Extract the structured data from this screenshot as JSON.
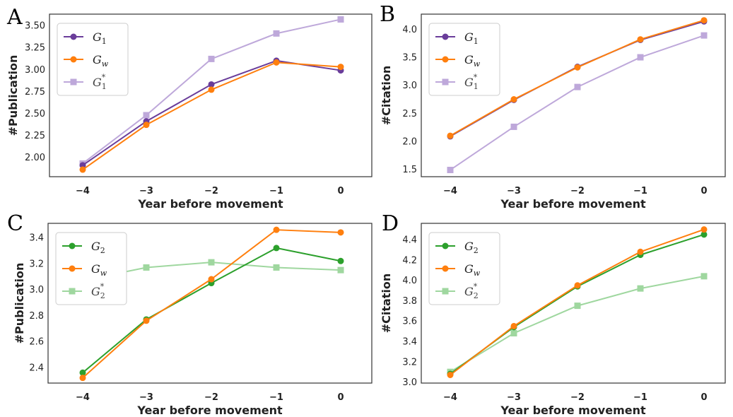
{
  "colors": {
    "purple": "#6a3d9a",
    "orange": "#ff7f0e",
    "light_purple": "#b39ad4",
    "green": "#2ca02c",
    "light_green": "#8fd18f",
    "axes": "#333333"
  },
  "chart_data": [
    {
      "panel": "A",
      "type": "line",
      "xlabel": "Year before movement",
      "ylabel": "#Publication",
      "x": [
        -4,
        -3,
        -2,
        -1,
        0
      ],
      "x_tick_labels": [
        "−4",
        "−3",
        "−2",
        "−1",
        "0"
      ],
      "yticks": [
        2.0,
        2.25,
        2.5,
        2.75,
        3.0,
        3.25,
        3.5
      ],
      "y_tick_labels": [
        "2.00",
        "2.25",
        "2.50",
        "2.75",
        "3.00",
        "3.25",
        "3.50"
      ],
      "ylim": [
        1.78,
        3.63
      ],
      "grid": false,
      "legend": "top-left",
      "series": [
        {
          "name": "G1",
          "legend_base": "G",
          "legend_sub": "1",
          "legend_sup": "",
          "color": "purple",
          "marker": "circle",
          "values": [
            1.91,
            2.41,
            2.83,
            3.1,
            2.99
          ]
        },
        {
          "name": "Gw",
          "legend_base": "G",
          "legend_sub": "w",
          "legend_sup": "",
          "color": "orange",
          "marker": "circle",
          "values": [
            1.86,
            2.37,
            2.77,
            3.08,
            3.03
          ]
        },
        {
          "name": "G1*",
          "legend_base": "G",
          "legend_sub": "1",
          "legend_sup": "*",
          "color": "light_purple",
          "marker": "square",
          "values": [
            1.93,
            2.48,
            3.12,
            3.41,
            3.57
          ]
        }
      ]
    },
    {
      "panel": "B",
      "type": "line",
      "xlabel": "Year before movement",
      "ylabel": "#Citation",
      "x": [
        -4,
        -3,
        -2,
        -1,
        0
      ],
      "x_tick_labels": [
        "−4",
        "−3",
        "−2",
        "−1",
        "0"
      ],
      "yticks": [
        1.5,
        2.0,
        2.5,
        3.0,
        3.5,
        4.0
      ],
      "y_tick_labels": [
        "1.5",
        "2.0",
        "2.5",
        "3.0",
        "3.5",
        "4.0"
      ],
      "ylim": [
        1.37,
        4.27
      ],
      "grid": false,
      "legend": "top-left",
      "series": [
        {
          "name": "G1",
          "legend_base": "G",
          "legend_sub": "1",
          "legend_sup": "",
          "color": "purple",
          "marker": "circle",
          "values": [
            2.09,
            2.74,
            3.33,
            3.81,
            4.14
          ]
        },
        {
          "name": "Gw",
          "legend_base": "G",
          "legend_sub": "w",
          "legend_sup": "",
          "color": "orange",
          "marker": "circle",
          "values": [
            2.1,
            2.75,
            3.32,
            3.82,
            4.16
          ]
        },
        {
          "name": "G1*",
          "legend_base": "G",
          "legend_sub": "1",
          "legend_sup": "*",
          "color": "light_purple",
          "marker": "square",
          "values": [
            1.49,
            2.26,
            2.97,
            3.5,
            3.89
          ]
        }
      ]
    },
    {
      "panel": "C",
      "type": "line",
      "xlabel": "Year before movement",
      "ylabel": "#Publication",
      "x": [
        -4,
        -3,
        -2,
        -1,
        0
      ],
      "x_tick_labels": [
        "−4",
        "−3",
        "−2",
        "−1",
        "0"
      ],
      "yticks": [
        2.4,
        2.6,
        2.8,
        3.0,
        3.2,
        3.4
      ],
      "y_tick_labels": [
        "2.4",
        "2.6",
        "2.8",
        "3.0",
        "3.2",
        "3.4"
      ],
      "ylim": [
        2.28,
        3.51
      ],
      "grid": false,
      "legend": "top-left",
      "series": [
        {
          "name": "G2",
          "legend_base": "G",
          "legend_sub": "2",
          "legend_sup": "",
          "color": "green",
          "marker": "circle",
          "values": [
            2.36,
            2.77,
            3.05,
            3.32,
            3.22
          ]
        },
        {
          "name": "Gw",
          "legend_base": "G",
          "legend_sub": "w",
          "legend_sup": "",
          "color": "orange",
          "marker": "circle",
          "values": [
            2.32,
            2.76,
            3.08,
            3.46,
            3.44
          ]
        },
        {
          "name": "G2*",
          "legend_base": "G",
          "legend_sub": "2",
          "legend_sup": "*",
          "color": "light_green",
          "marker": "square",
          "values": [
            3.07,
            3.17,
            3.21,
            3.17,
            3.15
          ]
        }
      ]
    },
    {
      "panel": "D",
      "type": "line",
      "xlabel": "Year before movement",
      "ylabel": "#Citation",
      "x": [
        -4,
        -3,
        -2,
        -1,
        0
      ],
      "x_tick_labels": [
        "−4",
        "−3",
        "−2",
        "−1",
        "0"
      ],
      "yticks": [
        3.0,
        3.2,
        3.4,
        3.6,
        3.8,
        4.0,
        4.2,
        4.4
      ],
      "y_tick_labels": [
        "3.0",
        "3.2",
        "3.4",
        "3.6",
        "3.8",
        "4.0",
        "4.2",
        "4.4"
      ],
      "ylim": [
        2.99,
        4.56
      ],
      "grid": false,
      "legend": "top-left",
      "series": [
        {
          "name": "G2",
          "legend_base": "G",
          "legend_sub": "2",
          "legend_sup": "",
          "color": "green",
          "marker": "circle",
          "values": [
            3.08,
            3.54,
            3.94,
            4.25,
            4.45
          ]
        },
        {
          "name": "Gw",
          "legend_base": "G",
          "legend_sub": "w",
          "legend_sup": "",
          "color": "orange",
          "marker": "circle",
          "values": [
            3.07,
            3.55,
            3.95,
            4.28,
            4.5
          ]
        },
        {
          "name": "G2*",
          "legend_base": "G",
          "legend_sub": "2",
          "legend_sup": "*",
          "color": "light_green",
          "marker": "square",
          "values": [
            3.1,
            3.48,
            3.75,
            3.92,
            4.04
          ]
        }
      ]
    }
  ]
}
